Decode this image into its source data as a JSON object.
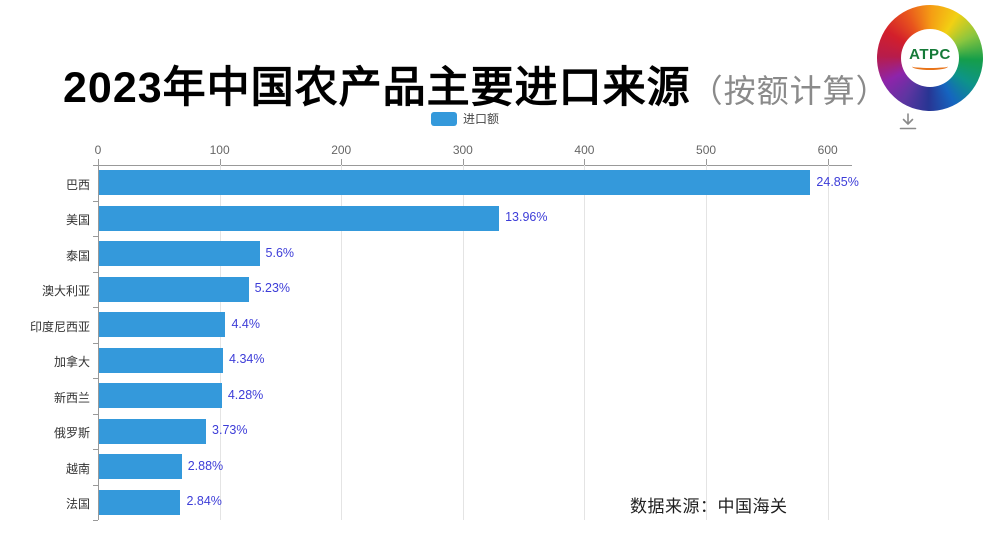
{
  "title": {
    "main": "2023年中国农产品主要进口来源",
    "suffix": "（按额计算）"
  },
  "logo": {
    "text": "ATPC"
  },
  "legend": {
    "label": "进口额",
    "swatch_color": "#3499DB"
  },
  "footer": {
    "source": "数据来源：中国海关"
  },
  "icons": {
    "download": "download-icon",
    "logo_ring": "rainbow-ring-icon"
  },
  "colors": {
    "bar": "#3499DB",
    "value_label": "#3d3dd8",
    "axis_label": "#666666",
    "grid": "#e4e4e4"
  },
  "chart_data": {
    "type": "bar",
    "orientation": "horizontal",
    "title": "2023年中国农产品主要进口来源（按额计算）",
    "series_name": "进口额",
    "categories": [
      "巴西",
      "美国",
      "泰国",
      "澳大利亚",
      "印度尼西亚",
      "加拿大",
      "新西兰",
      "俄罗斯",
      "越南",
      "法国"
    ],
    "values": [
      585,
      329,
      132,
      123,
      104,
      102,
      101,
      88,
      68,
      67
    ],
    "labels": [
      "24.85%",
      "13.96%",
      "5.6%",
      "5.23%",
      "4.4%",
      "4.34%",
      "4.28%",
      "3.73%",
      "2.88%",
      "2.84%"
    ],
    "xlim": [
      0,
      620
    ],
    "x_ticks": [
      0,
      100,
      200,
      300,
      400,
      500,
      600
    ],
    "grid": true,
    "legend_position": "top-center",
    "source_note": "数据来源：中国海关"
  }
}
